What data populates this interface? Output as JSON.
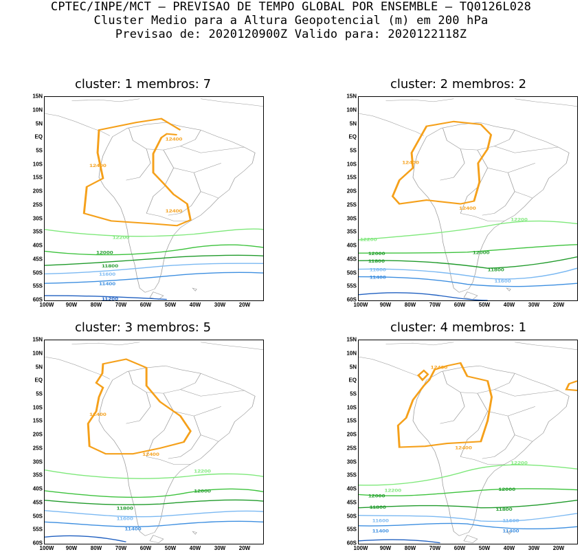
{
  "header": {
    "line1": "CPTEC/INPE/MCT – PREVISAO DE TEMPO GLOBAL POR ENSEMBLE – TQ0126L028",
    "line2": "Cluster Medio para a Altura Geopotencial (m) em 200 hPa",
    "line3": "Previsao de: 2020120900Z   Valido para: 2020122118Z"
  },
  "axes": {
    "lat_ticks": [
      "15N",
      "10N",
      "5N",
      "EQ",
      "5S",
      "10S",
      "15S",
      "20S",
      "25S",
      "30S",
      "35S",
      "40S",
      "45S",
      "50S",
      "55S",
      "60S"
    ],
    "lon_ticks": [
      "100W",
      "90W",
      "80W",
      "70W",
      "60W",
      "50W",
      "40W",
      "30W",
      "20W"
    ]
  },
  "colors": {
    "c12400": "#f5a01a",
    "c12200": "#7ee87a",
    "c12000": "#3cc23c",
    "c11800": "#1f9a2a",
    "c11600": "#7ab8f2",
    "c11400": "#3c8ee0",
    "c11200": "#1f5fc0",
    "coast": "#9a9a9a"
  },
  "panels": [
    {
      "title": "cluster: 1  membros: 7",
      "labels": {
        "l12400a": "12400",
        "l12400b": "12400",
        "l12400c": "12400",
        "l12200": "12200",
        "l12000": "12000",
        "l11800": "11800",
        "l11600": "11600",
        "l11400": "11400",
        "l11200": "11200"
      }
    },
    {
      "title": "cluster: 2  membros: 2",
      "labels": {
        "l12400a": "12400",
        "l12400b": "12400",
        "l12200a": "12200",
        "l12200b": "12200",
        "l12000a": "12000",
        "l12000b": "12000",
        "l11800a": "11800",
        "l11800b": "11800",
        "l11600a": "11600",
        "l11600b": "11600",
        "l11400": "11400"
      }
    },
    {
      "title": "cluster: 3  membros: 5",
      "labels": {
        "l12400a": "12400",
        "l12400b": "12400",
        "l12200": "12200",
        "l12000": "12000",
        "l11800": "11800",
        "l11600": "11600",
        "l11400": "11400"
      }
    },
    {
      "title": "cluster: 4  membros: 1",
      "labels": {
        "l12400a": "12400",
        "l12400b": "12400",
        "l12200a": "12200",
        "l12200b": "12200",
        "l12000a": "12000",
        "l12000b": "12000",
        "l11800a": "11800",
        "l11800b": "11800",
        "l11600a": "11600",
        "l11600b": "11600",
        "l11400a": "11400",
        "l11400b": "11400"
      }
    }
  ]
}
